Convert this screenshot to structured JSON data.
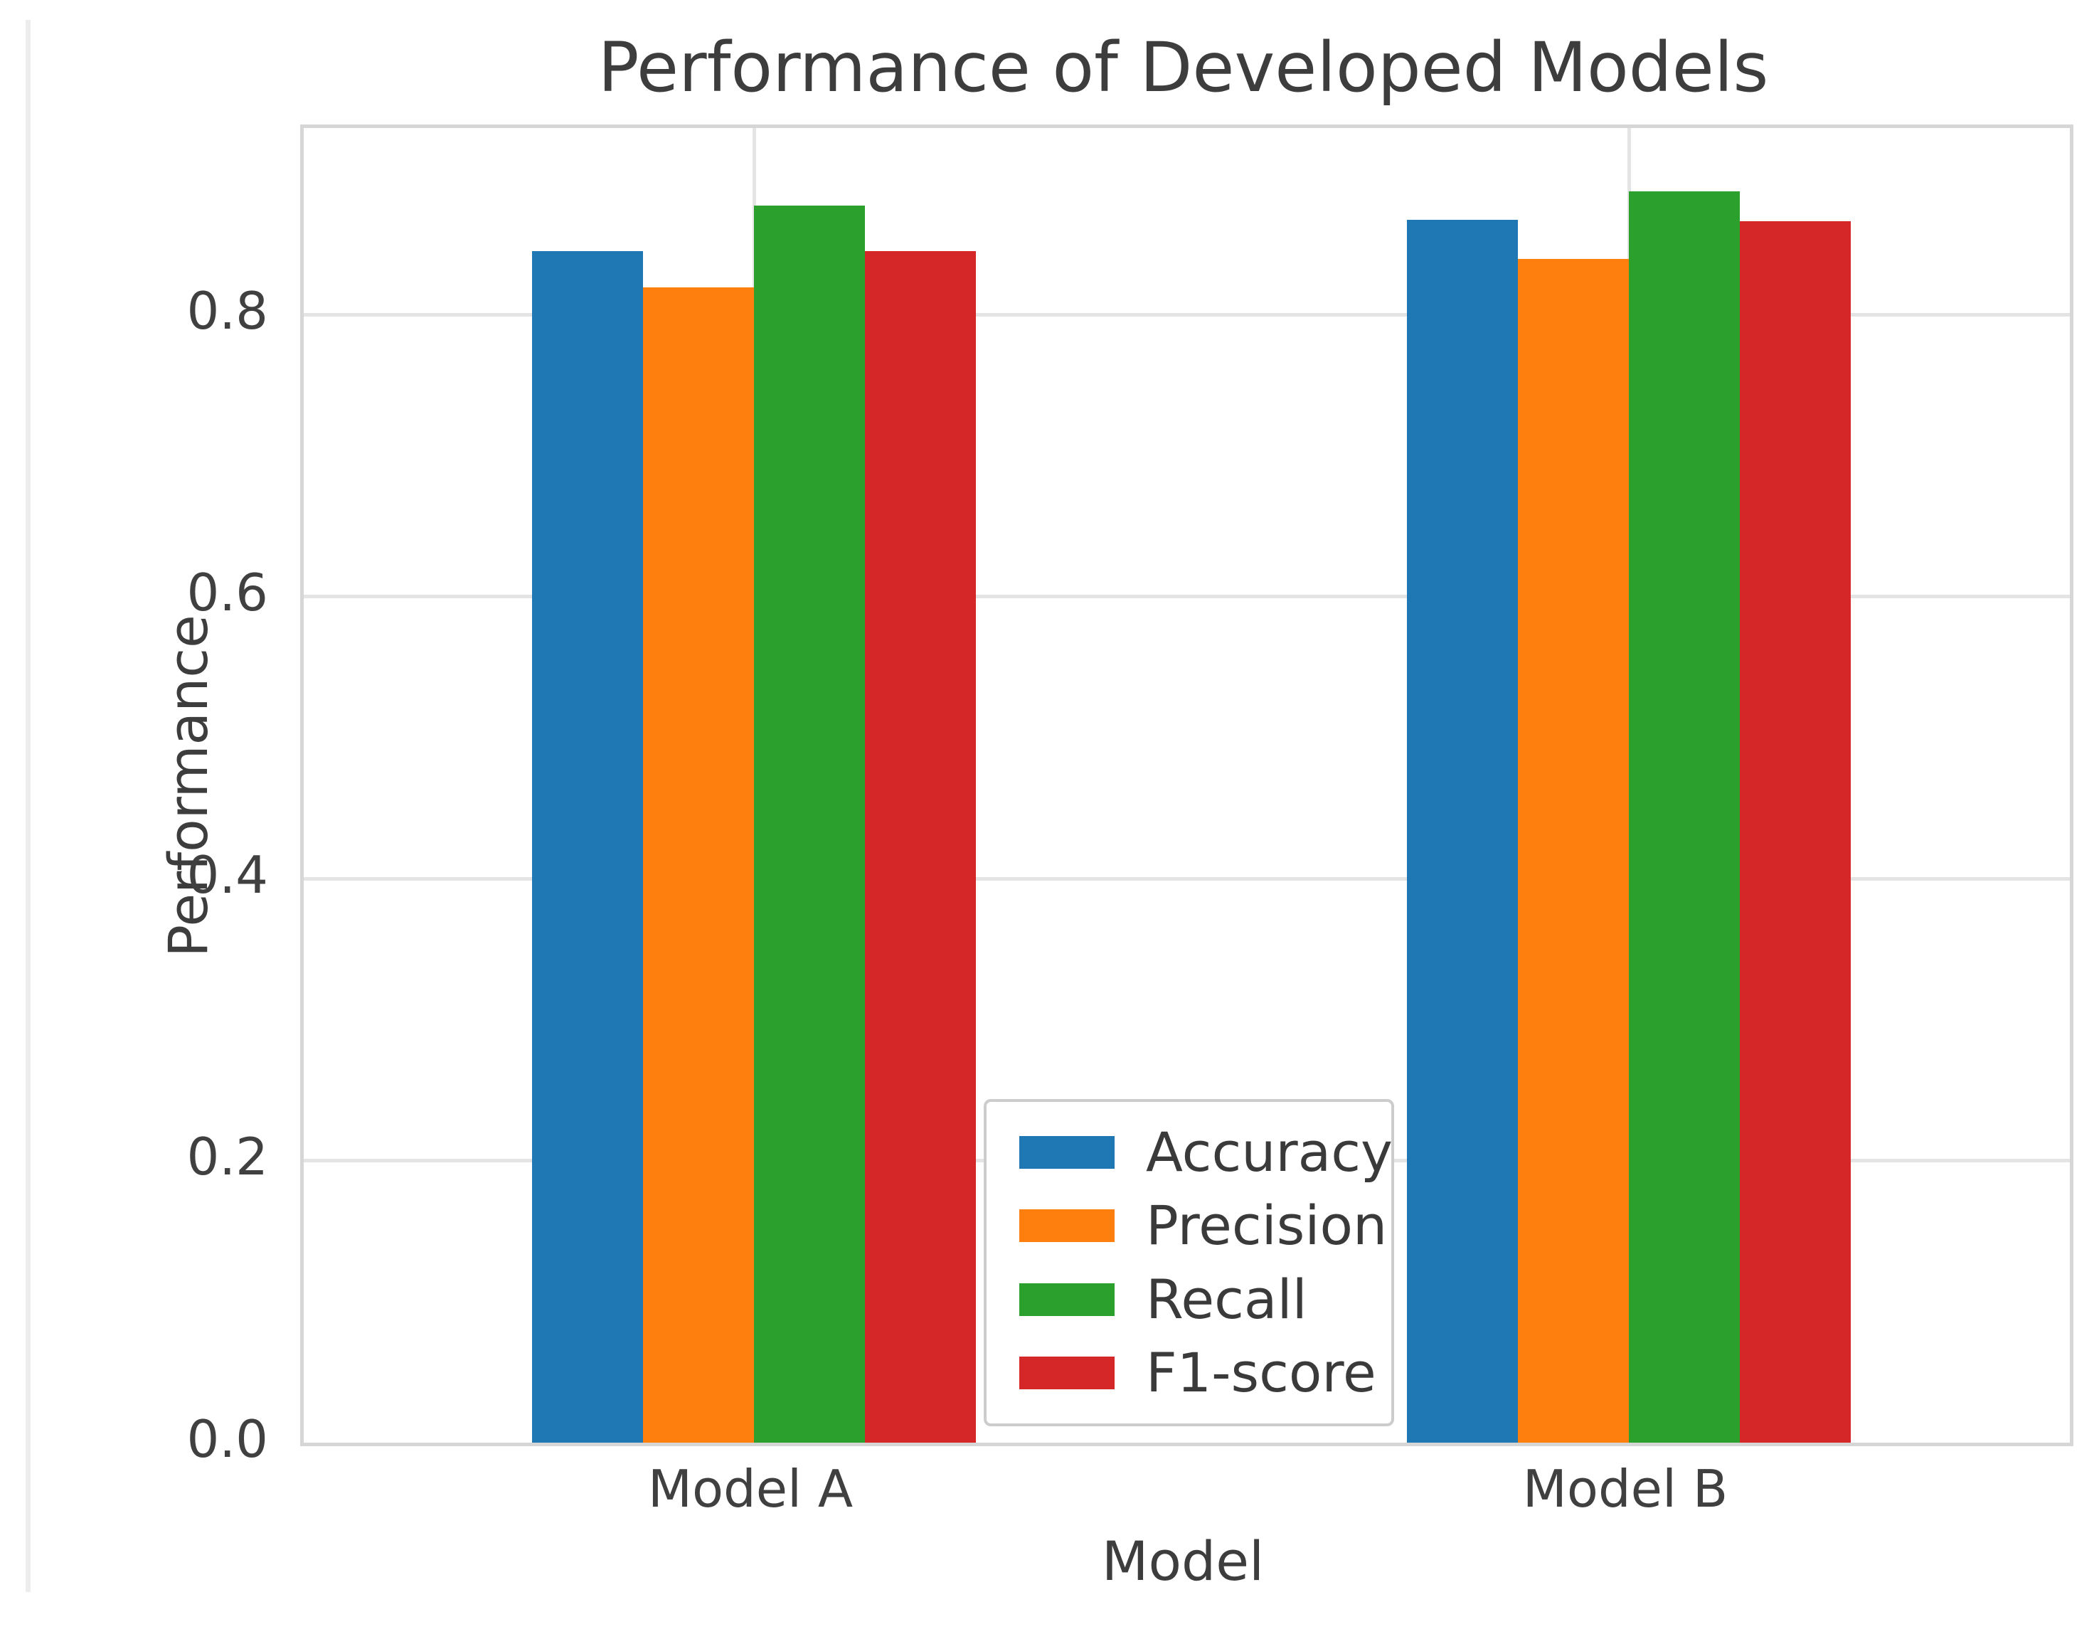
{
  "chart_data": {
    "type": "bar",
    "title": "Performance of Developed Models",
    "xlabel": "Model",
    "ylabel": "Performance",
    "categories": [
      "Model A",
      "Model B"
    ],
    "series": [
      {
        "name": "Accuracy",
        "color": "#1f77b4",
        "values": [
          0.845,
          0.867
        ]
      },
      {
        "name": "Precision",
        "color": "#ff7f0e",
        "values": [
          0.819,
          0.839
        ]
      },
      {
        "name": "Recall",
        "color": "#2ca02c",
        "values": [
          0.877,
          0.887
        ]
      },
      {
        "name": "F1-score",
        "color": "#d62728",
        "values": [
          0.845,
          0.866
        ]
      }
    ],
    "ylim": [
      0.0,
      0.932
    ],
    "ytick_values": [
      0.0,
      0.2,
      0.4,
      0.6,
      0.8
    ],
    "ytick_labels": [
      "0.0",
      "0.2",
      "0.4",
      "0.6",
      "0.8"
    ],
    "grid": true,
    "grid_style": "whitegrid",
    "legend_position": "lower-center-inside",
    "style": {
      "grid_color": "#e4e4e4",
      "spine_color": "#d6d6d6",
      "text_color": "#3d3d3d",
      "background": "#ffffff"
    }
  }
}
